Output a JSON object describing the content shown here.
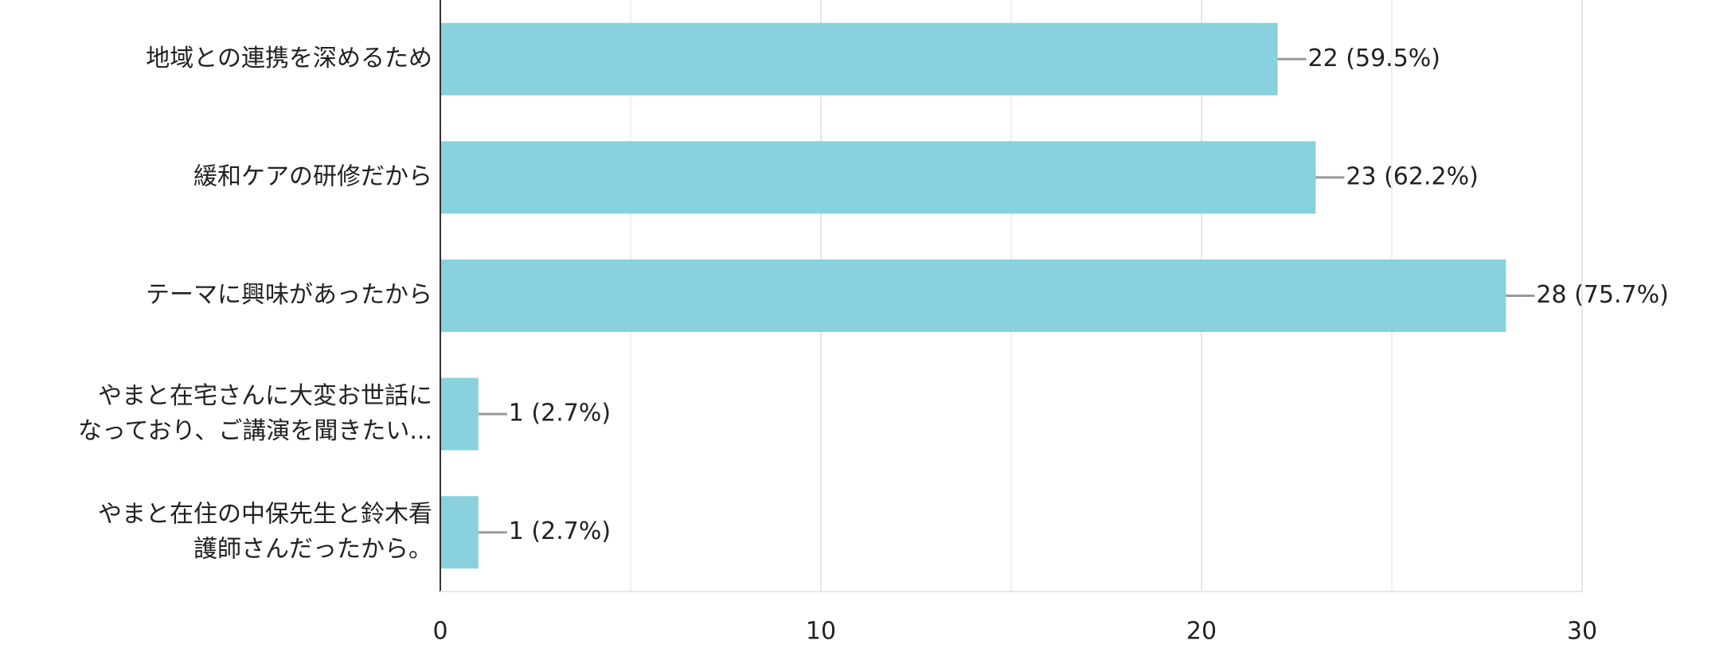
{
  "chart_data": {
    "type": "hbar",
    "categories": [
      "地域との連携を深めるため",
      "緩和ケアの研修だから",
      "テーマに興味があったから",
      "やまと在宅さんに大変お世話に\nなっており、ご講演を聞きたい...",
      "やまと在住の中保先生と鈴木看\n護師さんだったから。"
    ],
    "values": [
      22,
      23,
      28,
      1,
      1
    ],
    "value_labels": [
      "22 (59.5%)",
      "23 (62.2%)",
      "28 (75.7%)",
      "1 (2.7%)",
      "1 (2.7%)"
    ],
    "color": "#89d1dc",
    "xlim": [
      0,
      30
    ],
    "xticks": [
      0,
      10,
      20,
      30
    ],
    "grid": true
  }
}
